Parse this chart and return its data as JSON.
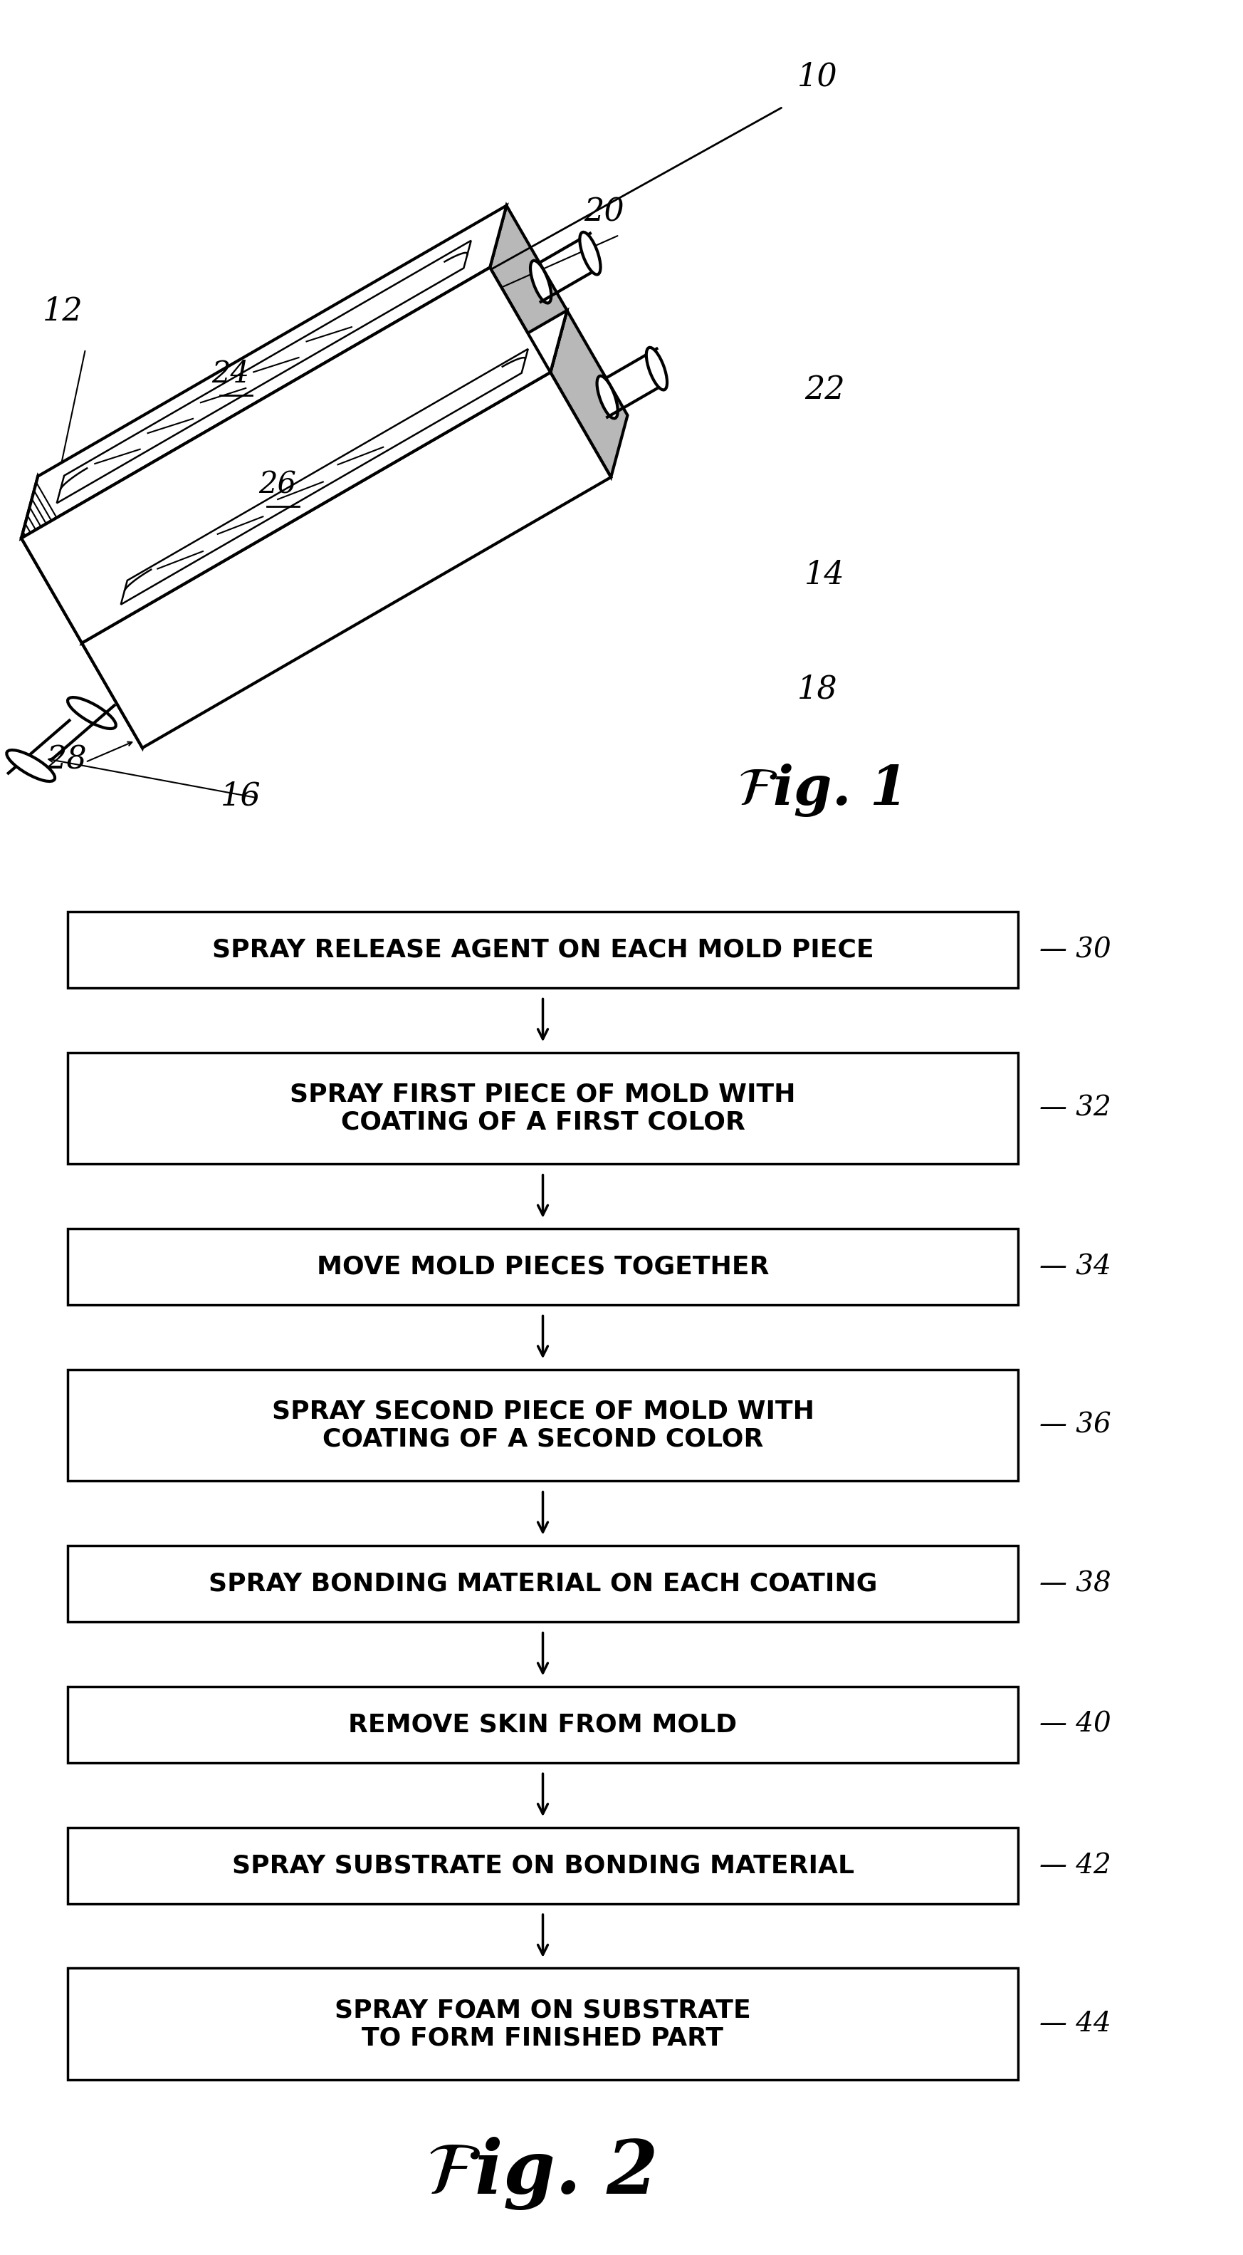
{
  "background_color": "#ffffff",
  "fig_width": 17.46,
  "fig_height": 31.66,
  "flowchart": {
    "boxes": [
      {
        "label": "SPRAY RELEASE AGENT ON EACH MOLD PIECE",
        "ref": "30",
        "lines": 1
      },
      {
        "label": "SPRAY FIRST PIECE OF MOLD WITH\nCOATING OF A FIRST COLOR",
        "ref": "32",
        "lines": 2
      },
      {
        "label": "MOVE MOLD PIECES TOGETHER",
        "ref": "34",
        "lines": 1
      },
      {
        "label": "SPRAY SECOND PIECE OF MOLD WITH\nCOATING OF A SECOND COLOR",
        "ref": "36",
        "lines": 2
      },
      {
        "label": "SPRAY BONDING MATERIAL ON EACH COATING",
        "ref": "38",
        "lines": 1
      },
      {
        "label": "REMOVE SKIN FROM MOLD",
        "ref": "40",
        "lines": 1
      },
      {
        "label": "SPRAY SUBSTRATE ON BONDING MATERIAL",
        "ref": "42",
        "lines": 1
      },
      {
        "label": "SPRAY FOAM ON SUBSTRATE\nTO FORM FINISHED PART",
        "ref": "44",
        "lines": 2
      }
    ],
    "box_color": "#ffffff",
    "border_color": "#000000",
    "text_color": "#000000",
    "arrow_color": "#000000"
  }
}
